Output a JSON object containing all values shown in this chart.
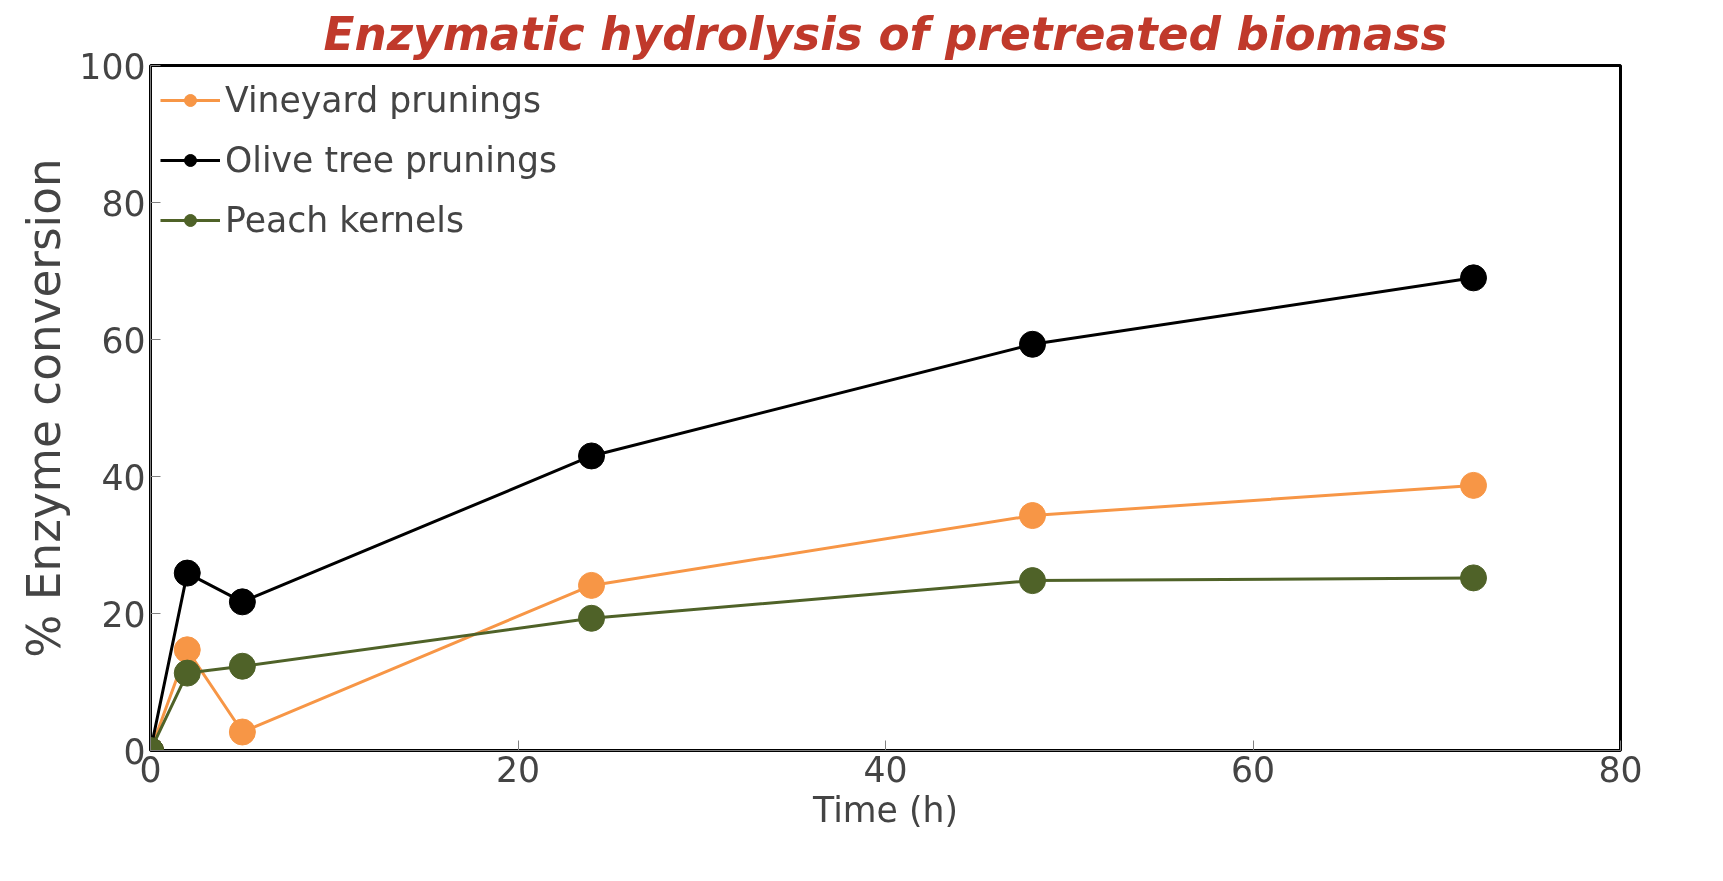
{
  "chart_data": {
    "type": "line",
    "title": "Enzymatic hydrolysis of pretreated biomass",
    "xlabel": "Time (h)",
    "ylabel": "% Enzyme conversion",
    "x": [
      0,
      2,
      5,
      24,
      48,
      72
    ],
    "series": [
      {
        "name": "Vineyard prunings",
        "color": "#f79646",
        "values": [
          0,
          14.7,
          2.7,
          24.1,
          34.3,
          38.7
        ]
      },
      {
        "name": "Olive tree prunings",
        "color": "#000000",
        "values": [
          0,
          25.9,
          21.7,
          43,
          59.3,
          69
        ]
      },
      {
        "name": "Peach kernels",
        "color": "#4f6228",
        "values": [
          0,
          11.3,
          12.3,
          19.3,
          24.8,
          25.2
        ]
      }
    ],
    "xlim": [
      0,
      80
    ],
    "xticks": [
      0,
      20,
      40,
      60,
      80
    ],
    "ylim": [
      0,
      100
    ],
    "yticks": [
      0,
      20,
      40,
      60,
      80,
      100
    ],
    "grid": false,
    "legend": "top left",
    "marker": "circle",
    "line_style": "solid"
  }
}
